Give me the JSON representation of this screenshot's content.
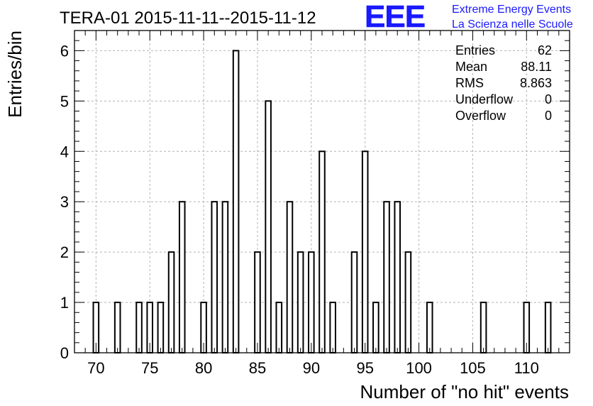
{
  "chart_data": {
    "type": "bar",
    "title": "TERA-01 2015-11-11--2015-11-12",
    "xlabel": "Number of \"no hit\" events",
    "ylabel": "Entries/bin",
    "xlim": [
      68,
      114
    ],
    "ylim": [
      0,
      6.4
    ],
    "grid": true,
    "bin_width": 0.5,
    "xticks": [
      70,
      75,
      80,
      85,
      90,
      95,
      100,
      105,
      110
    ],
    "xtick_labels": [
      "70",
      "75",
      "80",
      "85",
      "90",
      "95",
      "100",
      "105",
      "110"
    ],
    "yticks": [
      0,
      1,
      2,
      3,
      4,
      5,
      6
    ],
    "ytick_labels": [
      "0",
      "1",
      "2",
      "3",
      "4",
      "5",
      "6"
    ],
    "x": [
      70,
      72,
      74,
      75,
      76,
      77,
      78,
      80,
      81,
      82,
      83,
      85,
      86,
      87,
      88,
      89,
      90,
      91,
      92,
      94,
      95,
      96,
      97,
      98,
      99,
      101,
      106,
      110,
      112
    ],
    "values": [
      1,
      1,
      1,
      1,
      1,
      2,
      3,
      1,
      3,
      3,
      6,
      2,
      5,
      1,
      3,
      2,
      2,
      4,
      1,
      2,
      4,
      1,
      3,
      3,
      2,
      1,
      1,
      1,
      1
    ],
    "stats": [
      {
        "label": "Entries",
        "value": "62"
      },
      {
        "label": "Mean",
        "value": "88.11"
      },
      {
        "label": "RMS",
        "value": "8.863"
      },
      {
        "label": "Underflow",
        "value": "0"
      },
      {
        "label": "Overflow",
        "value": "0"
      }
    ]
  },
  "logo": {
    "mark": "EEE",
    "line1": "Extreme Energy Events",
    "line2": "La Scienza nelle Scuole",
    "color": "#1a1aff"
  }
}
